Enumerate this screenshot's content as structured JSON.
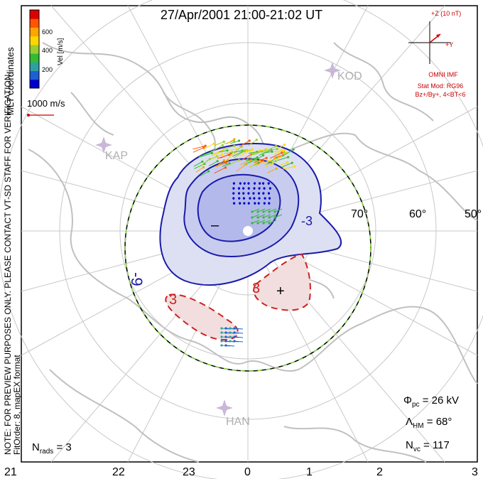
{
  "title": "27/Apr/2001 21:00-21:02 UT",
  "colorbar": {
    "label": "Vel [m/s]",
    "ticks": [
      "600",
      "400",
      "200"
    ],
    "colors": [
      "#0000cc",
      "#1e5fd6",
      "#2fa0a0",
      "#33bb33",
      "#9acd32",
      "#ffd700",
      "#ffa500",
      "#ff5500",
      "#dd0000"
    ]
  },
  "mlt_label": "MLT coordinates",
  "scale_vector": "1000 m/s",
  "imf": {
    "z_label": "+Z (10 nT)",
    "y_label": "+Y",
    "source": "OMNI IMF",
    "model": "Stat Mod: RG96",
    "conditions": "Bz+/By+, 4<BT<6"
  },
  "notice": "NOTE: FOR PREVIEW PURPOSES ONLY. PLEASE CONTACT VT-SD STAFF FOR VERIFICATION.",
  "fit_info": "FitOrder: 8, mapEX format",
  "stations": [
    "KOD",
    "KAP",
    "HAN"
  ],
  "latitude_labels": [
    "70°",
    "60°",
    "50°"
  ],
  "mlt_ticks": [
    "21",
    "22",
    "23",
    "0",
    "1",
    "2",
    "3"
  ],
  "contours": {
    "neg_label": "-9",
    "neg_label2": "-3",
    "pos_label": "3",
    "pos_label2": "3",
    "min_symbol": "–",
    "max_symbol": "+"
  },
  "stats": {
    "phi_pc": "Φpc = 26 kV",
    "phi_pc_sym": "Φ",
    "phi_pc_sub": "pc",
    "phi_pc_val": " = 26 kV",
    "lambda_sym": "Λ",
    "lambda_sub": "HM",
    "lambda_val": " = 68°",
    "nvc_sym": "N",
    "nvc_sub": "vc",
    "nvc_val": " = 117",
    "nrads_sym": "N",
    "nrads_sub": "rads",
    "nrads_val": " = 3"
  },
  "accent_colors": {
    "contour_neg": "#1a1aaa",
    "contour_pos": "#cc2222",
    "coast": "#c0c0c0"
  }
}
